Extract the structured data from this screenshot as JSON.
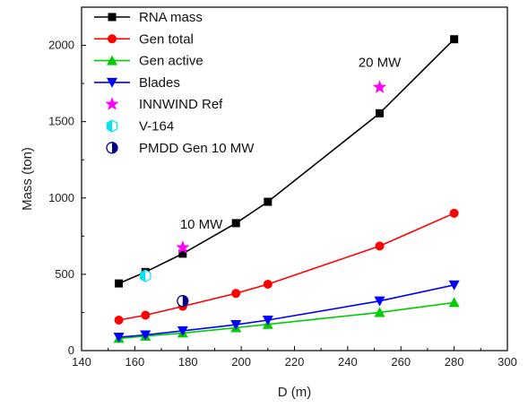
{
  "chart_data": {
    "type": "line",
    "xlabel": "D (m)",
    "ylabel": "Mass (ton)",
    "xlim": [
      140,
      300
    ],
    "ylim": [
      0,
      2250
    ],
    "xticks": [
      140,
      160,
      180,
      200,
      220,
      240,
      260,
      280,
      300
    ],
    "yticks": [
      0,
      500,
      1000,
      1500,
      2000
    ],
    "legend_position": "top-left",
    "series": [
      {
        "name": "RNA mass",
        "marker": "square",
        "color": "#000000",
        "line": true,
        "x": [
          154,
          164,
          178,
          198,
          210,
          252,
          280
        ],
        "y": [
          440,
          515,
          635,
          835,
          975,
          1555,
          2040
        ]
      },
      {
        "name": "Gen total",
        "marker": "circle",
        "color": "#ff0000",
        "line": true,
        "x": [
          154,
          164,
          178,
          198,
          210,
          252,
          280
        ],
        "y": [
          200,
          232,
          290,
          375,
          435,
          685,
          900
        ]
      },
      {
        "name": "Gen active",
        "marker": "triangle-up",
        "color": "#00cc00",
        "line": true,
        "x": [
          154,
          164,
          178,
          198,
          210,
          252,
          280
        ],
        "y": [
          80,
          95,
          115,
          150,
          172,
          250,
          315
        ]
      },
      {
        "name": "Blades",
        "marker": "triangle-down",
        "color": "#0000ff",
        "line": true,
        "x": [
          154,
          164,
          178,
          198,
          210,
          252,
          280
        ],
        "y": [
          88,
          103,
          130,
          170,
          200,
          325,
          430
        ]
      },
      {
        "name": "INNWIND Ref",
        "marker": "star",
        "color": "#ff00ff",
        "line": false,
        "x": [
          178,
          252
        ],
        "y": [
          675,
          1725
        ]
      },
      {
        "name": "V-164",
        "marker": "half-hexagon",
        "color": "#00e5ee",
        "line": false,
        "x": [
          164
        ],
        "y": [
          490
        ]
      },
      {
        "name": "PMDD Gen 10 MW",
        "marker": "half-circle",
        "color": "#000080",
        "line": false,
        "x": [
          178
        ],
        "y": [
          325
        ]
      }
    ],
    "annotations": [
      {
        "text": "10 MW",
        "x": 185,
        "y": 800
      },
      {
        "text": "20 MW",
        "x": 252,
        "y": 1860
      }
    ]
  }
}
